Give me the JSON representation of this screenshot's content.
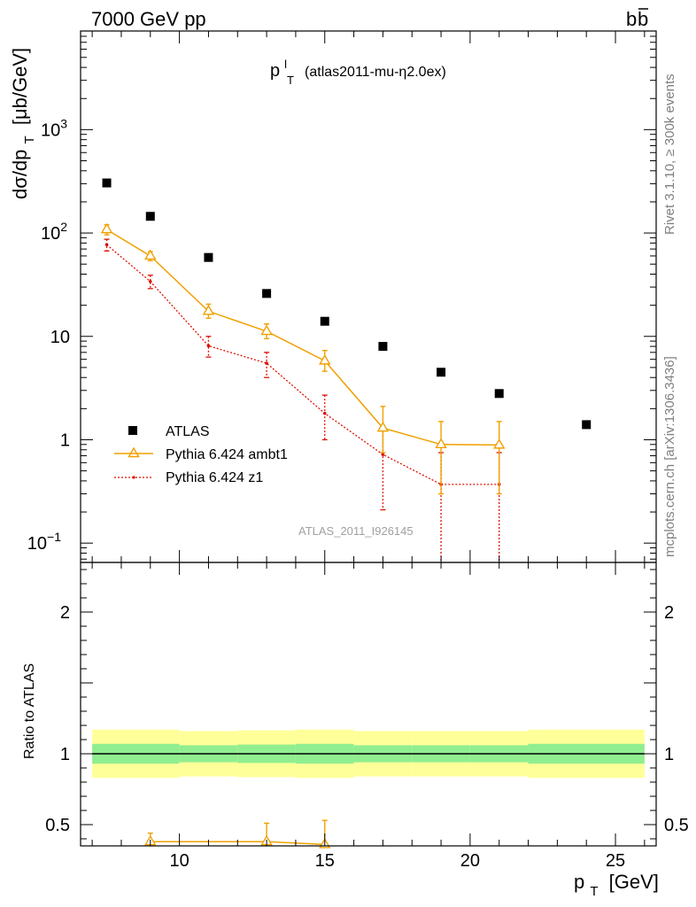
{
  "header": {
    "left": "7000 GeV pp",
    "right_main": "b",
    "right_bar": "b"
  },
  "title": {
    "main": "p",
    "sup": "l",
    "sub": "T",
    "rest": "(atlas2011-mu-η2.0ex)"
  },
  "side_labels": {
    "rivet": "Rivet 3.1.10, ≥ 300k events",
    "mcplots": "mcplots.cern.ch [arXiv:1306.3436]"
  },
  "watermark": "ATLAS_2011_I926145",
  "colors": {
    "atlas": "#000000",
    "ambt1": "#f0a000",
    "z1": "#dd1100",
    "band_inner": "#90ee90",
    "band_outer": "#ffff99",
    "side_text": "#808080"
  },
  "chart_data": {
    "type": "scatter",
    "xlabel": {
      "main": "p",
      "sub": "T",
      "unit": "[GeV]"
    },
    "ylabel": {
      "pre": "dσ/dp",
      "sub": "T",
      "unit": "[μb/GeV]"
    },
    "ratio_ylabel": "Ratio to ATLAS",
    "xlim": [
      6.6,
      26.4
    ],
    "ylim": [
      0.065,
      9000
    ],
    "yscale": "log",
    "ratio_ylim": [
      0.35,
      2.35
    ],
    "x_ticks": [
      {
        "value": 10,
        "label": "10"
      },
      {
        "value": 15,
        "label": "15"
      },
      {
        "value": 20,
        "label": "20"
      },
      {
        "value": 25,
        "label": "25"
      }
    ],
    "y_ticks": [
      {
        "value": 0.1,
        "base": "10",
        "exp": "−1"
      },
      {
        "value": 1,
        "base": "1",
        "exp": ""
      },
      {
        "value": 10,
        "base": "10",
        "exp": ""
      },
      {
        "value": 100,
        "base": "10",
        "exp": "2"
      },
      {
        "value": 1000,
        "base": "10",
        "exp": "3"
      }
    ],
    "ratio_ticks": [
      {
        "value": 0.5,
        "label": "0.5"
      },
      {
        "value": 1,
        "label": "1"
      },
      {
        "value": 2,
        "label": "2"
      }
    ],
    "legend_position": "lower-left",
    "series": [
      {
        "name": "ATLAS",
        "style": "marker",
        "x": [
          7.5,
          9,
          11,
          13,
          15,
          17,
          19,
          21,
          24
        ],
        "y": [
          305,
          145,
          58,
          26,
          14,
          8,
          4.5,
          2.8,
          1.4
        ]
      },
      {
        "name": "Pythia 6.424 ambt1",
        "style": "solid",
        "x": [
          7.5,
          9,
          11,
          13,
          15,
          17,
          19,
          21
        ],
        "y": [
          108,
          60,
          17.5,
          11.2,
          5.8,
          1.3,
          0.9,
          0.89
        ],
        "err_low": [
          96,
          54,
          15,
          9.5,
          4.6,
          0.75,
          0.3,
          0.3
        ],
        "err_high": [
          120,
          66,
          20.5,
          13.2,
          7.3,
          2.1,
          1.5,
          1.5
        ]
      },
      {
        "name": "Pythia 6.424 z1",
        "style": "dotted",
        "x": [
          7.5,
          9,
          11,
          13,
          15,
          17,
          19,
          21
        ],
        "y": [
          77,
          34,
          8.1,
          5.5,
          1.8,
          0.72,
          0.37,
          0.37
        ],
        "err_low": [
          67,
          29,
          6.3,
          4,
          1,
          0.21,
          0.02,
          0.02
        ],
        "err_high": [
          87,
          39,
          10,
          7,
          2.7,
          1.3,
          0.75,
          0.75
        ]
      }
    ],
    "ratio_band": {
      "bins": [
        [
          7,
          10
        ],
        [
          10,
          12
        ],
        [
          12,
          14
        ],
        [
          14,
          16
        ],
        [
          16,
          18
        ],
        [
          18,
          20
        ],
        [
          20,
          22
        ],
        [
          22,
          26
        ]
      ],
      "inner_half": [
        0.07,
        0.06,
        0.065,
        0.07,
        0.06,
        0.06,
        0.06,
        0.07
      ],
      "outer_half": [
        0.17,
        0.16,
        0.165,
        0.17,
        0.16,
        0.16,
        0.16,
        0.17
      ]
    },
    "ratio_series": [
      {
        "name": "Pythia 6.424 ambt1",
        "x": [
          9,
          13,
          15
        ],
        "y": [
          0.38,
          0.38,
          0.36
        ],
        "err_low": [
          0.3,
          0.3,
          0.3
        ],
        "err_high": [
          0.44,
          0.51,
          0.53
        ]
      }
    ]
  }
}
